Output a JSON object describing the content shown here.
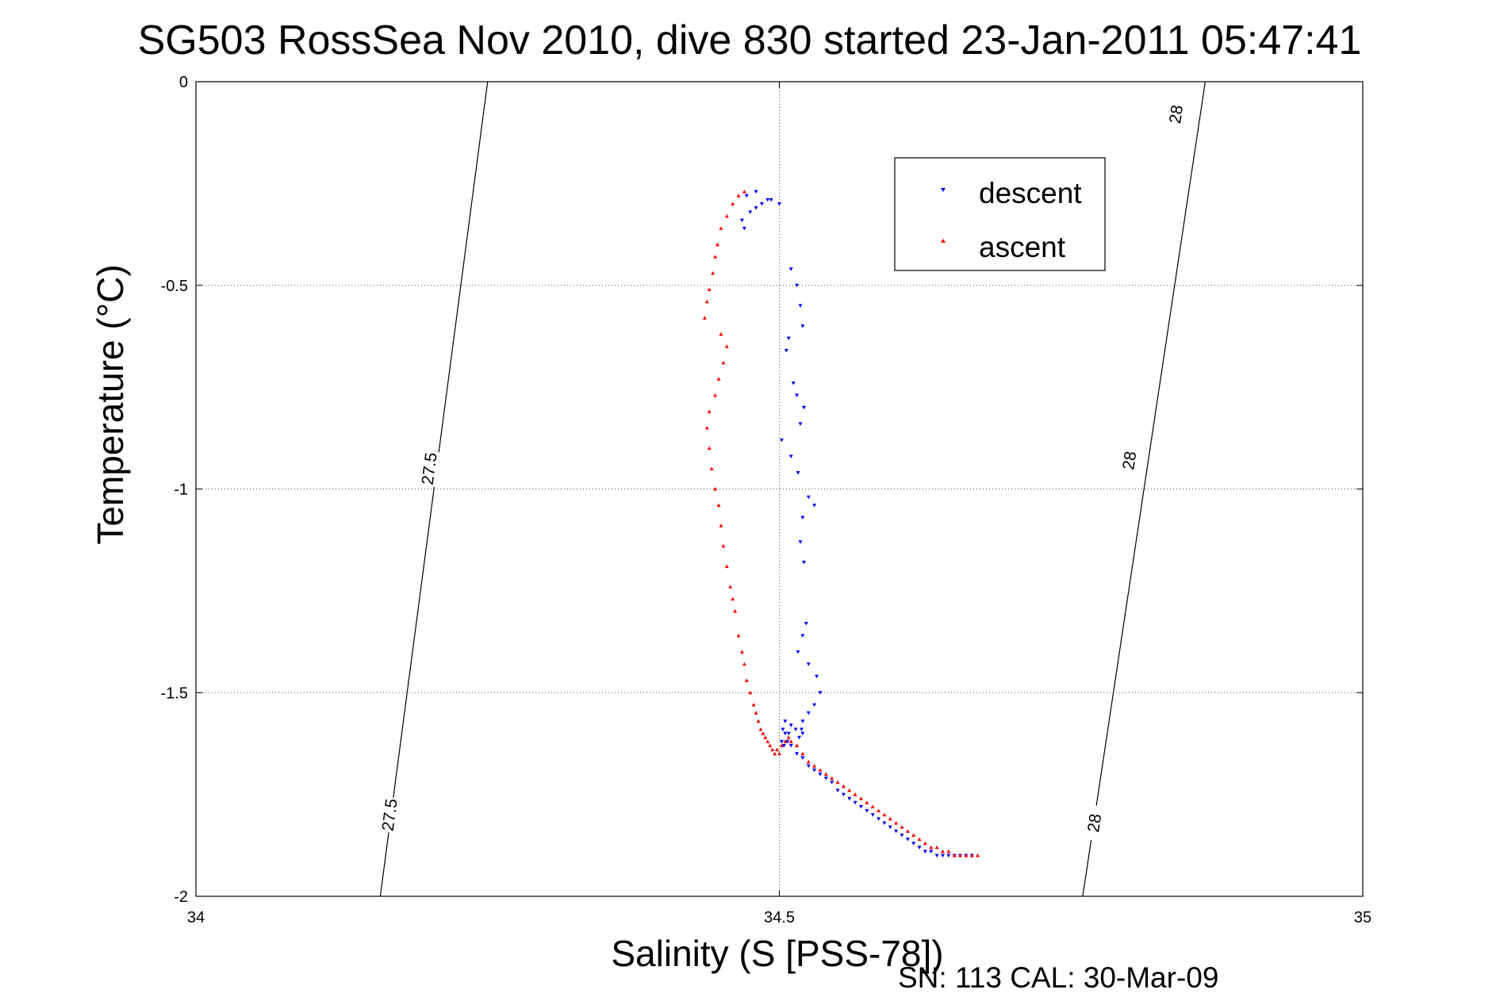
{
  "chart_data": {
    "type": "scatter",
    "title": "SG503 RossSea Nov 2010, dive 830 started 23-Jan-2011 05:47:41",
    "xlabel": "Salinity (S [PSS-78])",
    "ylabel": "Temperature (°C)",
    "footer": "SN: 113  CAL: 30-Mar-09",
    "xlim": [
      34,
      35
    ],
    "ylim": [
      -2,
      0
    ],
    "xticks": [
      34,
      34.5,
      35
    ],
    "xtick_labels": [
      "34",
      "34.5",
      "35"
    ],
    "yticks": [
      0,
      -0.5,
      -1,
      -1.5,
      -2
    ],
    "ytick_labels": [
      "0",
      "-0.5",
      "-1",
      "-1.5",
      "-2"
    ],
    "grid": true,
    "legend": {
      "position": "top-right",
      "entries": [
        "descent",
        "ascent"
      ]
    },
    "colors": {
      "descent": "#0000ff",
      "ascent": "#ff0000",
      "axis": "#000000",
      "grid": "#555555"
    },
    "isopycnals": [
      {
        "label": "27.5",
        "points": [
          [
            34.158,
            -2.0
          ],
          [
            34.25,
            0.0
          ]
        ],
        "label_positions": [
          [
            34.166,
            -1.8
          ],
          [
            34.2,
            -0.95
          ]
        ]
      },
      {
        "label": "28",
        "points": [
          [
            34.76,
            -2.0
          ],
          [
            34.865,
            0.0
          ]
        ],
        "label_positions": [
          [
            34.77,
            -1.82
          ],
          [
            34.8,
            -0.93
          ],
          [
            34.84,
            -0.08
          ]
        ]
      }
    ],
    "series": [
      {
        "name": "descent",
        "marker": "triangle-down",
        "x": [
          34.49,
          34.485,
          34.48,
          34.475,
          34.468,
          34.47,
          34.472,
          34.48,
          34.493,
          34.5,
          34.51,
          34.515,
          34.518,
          34.52,
          34.508,
          34.506,
          34.512,
          34.515,
          34.521,
          34.518,
          34.502,
          34.51,
          34.516,
          34.525,
          34.53,
          34.52,
          34.518,
          34.521,
          34.523,
          34.52,
          34.516,
          34.525,
          34.532,
          34.535,
          34.53,
          34.525,
          34.52,
          34.519,
          34.52,
          34.517,
          34.514,
          34.51,
          34.508,
          34.505,
          34.503,
          34.502,
          34.504,
          34.505,
          34.507,
          34.51,
          34.515,
          34.52,
          34.525,
          34.53,
          34.535,
          34.54,
          34.545,
          34.55,
          34.555,
          34.56,
          34.565,
          34.57,
          34.575,
          34.58,
          34.585,
          34.59,
          34.595,
          34.6,
          34.605,
          34.61,
          34.615,
          34.62,
          34.625,
          34.63,
          34.635,
          34.64,
          34.645,
          34.65,
          34.655,
          34.66,
          34.665
        ],
        "y": [
          -0.29,
          -0.3,
          -0.31,
          -0.32,
          -0.34,
          -0.36,
          -0.28,
          -0.27,
          -0.29,
          -0.3,
          -0.46,
          -0.5,
          -0.55,
          -0.6,
          -0.63,
          -0.66,
          -0.74,
          -0.77,
          -0.8,
          -0.84,
          -0.88,
          -0.92,
          -0.96,
          -1.02,
          -1.04,
          -1.07,
          -1.13,
          -1.18,
          -1.33,
          -1.36,
          -1.4,
          -1.43,
          -1.46,
          -1.5,
          -1.53,
          -1.55,
          -1.57,
          -1.59,
          -1.6,
          -1.61,
          -1.59,
          -1.58,
          -1.6,
          -1.57,
          -1.59,
          -1.62,
          -1.63,
          -1.6,
          -1.62,
          -1.63,
          -1.65,
          -1.66,
          -1.68,
          -1.69,
          -1.7,
          -1.71,
          -1.72,
          -1.74,
          -1.75,
          -1.76,
          -1.77,
          -1.78,
          -1.79,
          -1.8,
          -1.81,
          -1.82,
          -1.83,
          -1.84,
          -1.85,
          -1.86,
          -1.87,
          -1.88,
          -1.89,
          -1.89,
          -1.9,
          -1.9,
          -1.9,
          -1.9,
          -1.9,
          -1.9,
          -1.9
        ]
      },
      {
        "name": "ascent",
        "marker": "triangle-up",
        "x": [
          34.47,
          34.465,
          34.46,
          34.455,
          34.45,
          34.447,
          34.445,
          34.443,
          34.44,
          34.438,
          34.436,
          34.45,
          34.455,
          34.452,
          34.448,
          34.445,
          34.44,
          34.438,
          34.44,
          34.442,
          34.445,
          34.448,
          34.45,
          34.452,
          34.455,
          34.458,
          34.46,
          34.462,
          34.465,
          34.468,
          34.47,
          34.472,
          34.475,
          34.478,
          34.48,
          34.482,
          34.484,
          34.486,
          34.488,
          34.49,
          34.492,
          34.494,
          34.496,
          34.498,
          34.5,
          34.502,
          34.505,
          34.508,
          34.51,
          34.515,
          34.52,
          34.525,
          34.53,
          34.535,
          34.54,
          34.545,
          34.55,
          34.555,
          34.56,
          34.565,
          34.57,
          34.575,
          34.58,
          34.585,
          34.59,
          34.595,
          34.6,
          34.605,
          34.61,
          34.615,
          34.62,
          34.625,
          34.63,
          34.635,
          34.64,
          34.645,
          34.65,
          34.655,
          34.66,
          34.665,
          34.67
        ],
        "y": [
          -0.27,
          -0.28,
          -0.3,
          -0.33,
          -0.36,
          -0.4,
          -0.43,
          -0.47,
          -0.51,
          -0.54,
          -0.58,
          -0.62,
          -0.65,
          -0.69,
          -0.73,
          -0.77,
          -0.81,
          -0.85,
          -0.9,
          -0.95,
          -1.0,
          -1.04,
          -1.09,
          -1.14,
          -1.19,
          -1.24,
          -1.27,
          -1.3,
          -1.36,
          -1.4,
          -1.43,
          -1.47,
          -1.5,
          -1.53,
          -1.55,
          -1.57,
          -1.59,
          -1.6,
          -1.61,
          -1.62,
          -1.63,
          -1.64,
          -1.65,
          -1.64,
          -1.65,
          -1.63,
          -1.62,
          -1.61,
          -1.62,
          -1.63,
          -1.65,
          -1.67,
          -1.68,
          -1.69,
          -1.7,
          -1.71,
          -1.72,
          -1.73,
          -1.74,
          -1.75,
          -1.76,
          -1.77,
          -1.78,
          -1.79,
          -1.8,
          -1.81,
          -1.82,
          -1.83,
          -1.84,
          -1.85,
          -1.86,
          -1.87,
          -1.88,
          -1.88,
          -1.89,
          -1.89,
          -1.9,
          -1.9,
          -1.9,
          -1.9,
          -1.9
        ]
      }
    ]
  }
}
